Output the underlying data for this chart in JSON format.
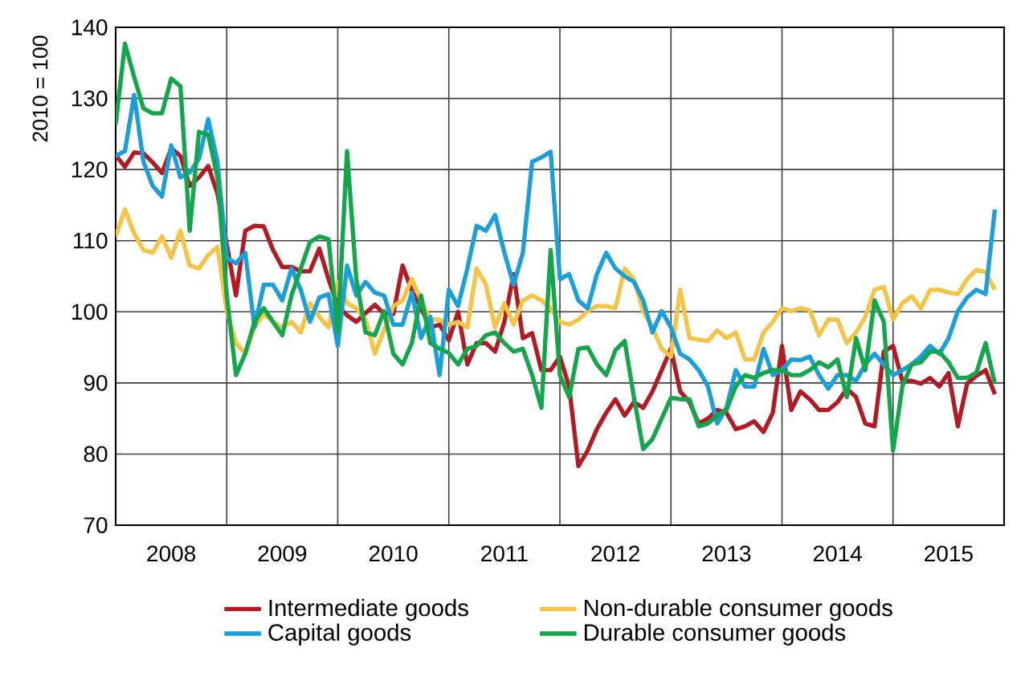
{
  "chart_data": {
    "type": "line",
    "ylabel": "2010 = 100",
    "x": [
      "2008-01",
      "2008-02",
      "2008-03",
      "2008-04",
      "2008-05",
      "2008-06",
      "2008-07",
      "2008-08",
      "2008-09",
      "2008-10",
      "2008-11",
      "2008-12",
      "2009-01",
      "2009-02",
      "2009-03",
      "2009-04",
      "2009-05",
      "2009-06",
      "2009-07",
      "2009-08",
      "2009-09",
      "2009-10",
      "2009-11",
      "2009-12",
      "2010-01",
      "2010-02",
      "2010-03",
      "2010-04",
      "2010-05",
      "2010-06",
      "2010-07",
      "2010-08",
      "2010-09",
      "2010-10",
      "2010-11",
      "2010-12",
      "2011-01",
      "2011-02",
      "2011-03",
      "2011-04",
      "2011-05",
      "2011-06",
      "2011-07",
      "2011-08",
      "2011-09",
      "2011-10",
      "2011-11",
      "2011-12",
      "2012-01",
      "2012-02",
      "2012-03",
      "2012-04",
      "2012-05",
      "2012-06",
      "2012-07",
      "2012-08",
      "2012-09",
      "2012-10",
      "2012-11",
      "2012-12",
      "2013-01",
      "2013-02",
      "2013-03",
      "2013-04",
      "2013-05",
      "2013-06",
      "2013-07",
      "2013-08",
      "2013-09",
      "2013-10",
      "2013-11",
      "2013-12",
      "2014-01",
      "2014-02",
      "2014-03",
      "2014-04",
      "2014-05",
      "2014-06",
      "2014-07",
      "2014-08",
      "2014-09",
      "2014-10",
      "2014-11",
      "2014-12",
      "2015-01",
      "2015-02",
      "2015-03",
      "2015-04",
      "2015-05",
      "2015-06",
      "2015-07",
      "2015-08",
      "2015-09",
      "2015-10",
      "2015-11",
      "2015-12"
    ],
    "xlim": [
      "2008-01",
      "2016-01"
    ],
    "xticks": [
      {
        "value": "2008-01",
        "label": null
      },
      {
        "value": "2008-07",
        "label": "2008"
      },
      {
        "value": "2009-01",
        "label": null
      },
      {
        "value": "2009-07",
        "label": "2009"
      },
      {
        "value": "2010-01",
        "label": null
      },
      {
        "value": "2010-07",
        "label": "2010"
      },
      {
        "value": "2011-01",
        "label": null
      },
      {
        "value": "2011-07",
        "label": "2011"
      },
      {
        "value": "2012-01",
        "label": null
      },
      {
        "value": "2012-07",
        "label": "2012"
      },
      {
        "value": "2013-01",
        "label": null
      },
      {
        "value": "2013-07",
        "label": "2013"
      },
      {
        "value": "2014-01",
        "label": null
      },
      {
        "value": "2014-07",
        "label": "2014"
      },
      {
        "value": "2015-01",
        "label": null
      },
      {
        "value": "2015-07",
        "label": "2015"
      },
      {
        "value": "2016-01",
        "label": null
      }
    ],
    "ylim": [
      70,
      140
    ],
    "yticks": [
      70,
      80,
      90,
      100,
      110,
      120,
      130,
      140
    ],
    "grid": true,
    "legend": "bottom",
    "marker": "none",
    "series": [
      {
        "name": "Intermediate goods",
        "color": "#b31b24",
        "values": [
          122.0,
          120.4,
          122.4,
          122.3,
          121.0,
          119.5,
          123.0,
          121.9,
          117.7,
          118.9,
          120.5,
          116.6,
          109.5,
          102.3,
          111.4,
          112.1,
          112.0,
          108.7,
          106.3,
          106.3,
          105.7,
          105.7,
          108.9,
          104.6,
          100.8,
          99.5,
          98.6,
          99.8,
          101.0,
          99.7,
          99.7,
          106.5,
          103.0,
          100.5,
          97.8,
          98.2,
          96.0,
          100.0,
          92.6,
          95.6,
          95.6,
          94.4,
          98.6,
          105.3,
          96.3,
          97.0,
          91.8,
          91.8,
          93.7,
          89.5,
          78.3,
          80.5,
          83.5,
          85.8,
          87.7,
          85.4,
          87.3,
          86.5,
          88.8,
          91.8,
          94.8,
          88.8,
          87.3,
          84.3,
          85.0,
          86.2,
          85.8,
          83.5,
          83.9,
          84.6,
          83.1,
          85.8,
          95.2,
          86.2,
          88.8,
          87.7,
          86.2,
          86.2,
          87.3,
          89.2,
          88.0,
          84.3,
          83.9,
          94.4,
          95.2,
          90.3,
          90.3,
          89.9,
          90.7,
          89.5,
          91.4,
          83.9,
          89.9,
          91.0,
          91.8,
          88.4
        ]
      },
      {
        "name": "Non-durable consumer goods",
        "color": "#f5c445",
        "values": [
          110.6,
          114.4,
          111.0,
          108.7,
          108.3,
          110.6,
          107.6,
          111.4,
          106.5,
          106.1,
          108.0,
          109.1,
          100.1,
          95.6,
          94.1,
          97.8,
          99.7,
          98.6,
          97.8,
          98.6,
          97.1,
          101.2,
          99.3,
          97.8,
          104.2,
          101.2,
          100.5,
          98.9,
          94.1,
          97.4,
          100.8,
          101.6,
          104.6,
          101.6,
          98.9,
          98.9,
          98.2,
          98.6,
          97.8,
          106.1,
          103.8,
          97.8,
          101.2,
          98.2,
          101.6,
          102.3,
          101.6,
          100.5,
          98.6,
          98.2,
          98.9,
          100.1,
          100.8,
          100.8,
          100.5,
          106.1,
          104.6,
          100.1,
          97.8,
          94.8,
          93.7,
          103.1,
          96.3,
          96.1,
          95.9,
          97.4,
          96.3,
          97.1,
          93.3,
          93.3,
          97.1,
          98.6,
          100.5,
          100.1,
          100.5,
          100.2,
          96.7,
          98.9,
          98.9,
          95.6,
          97.1,
          99.3,
          103.1,
          103.5,
          98.9,
          101.2,
          102.2,
          100.5,
          103.1,
          103.1,
          102.7,
          102.5,
          104.6,
          105.9,
          105.6,
          103.1
        ]
      },
      {
        "name": "Capital goods",
        "color": "#1a9fdb",
        "values": [
          121.9,
          122.6,
          130.5,
          121.1,
          117.7,
          116.2,
          123.4,
          118.9,
          119.6,
          121.5,
          127.1,
          121.1,
          107.6,
          106.8,
          108.3,
          97.8,
          103.8,
          103.8,
          101.6,
          106.1,
          103.1,
          98.6,
          102.0,
          102.5,
          95.2,
          106.5,
          102.3,
          104.2,
          102.7,
          102.3,
          98.2,
          98.2,
          102.7,
          96.3,
          99.3,
          91.1,
          103.1,
          100.8,
          106.1,
          112.1,
          111.4,
          113.6,
          108.3,
          103.8,
          108.3,
          121.1,
          121.7,
          122.5,
          104.6,
          105.3,
          101.6,
          100.5,
          105.3,
          108.3,
          106.1,
          105.0,
          104.2,
          101.6,
          97.1,
          100.1,
          97.8,
          94.1,
          93.3,
          91.8,
          89.5,
          84.3,
          86.5,
          91.8,
          89.5,
          89.5,
          94.8,
          91.1,
          91.8,
          93.3,
          93.2,
          93.7,
          91.1,
          89.2,
          91.1,
          91.1,
          90.3,
          92.6,
          94.1,
          92.6,
          91.1,
          91.8,
          92.6,
          93.7,
          95.2,
          94.1,
          96.3,
          100.1,
          102.0,
          103.1,
          102.5,
          114.4
        ]
      },
      {
        "name": "Durable consumer goods",
        "color": "#13a64a",
        "values": [
          126.4,
          137.7,
          133.0,
          128.6,
          127.9,
          127.9,
          132.8,
          131.7,
          111.4,
          125.3,
          124.9,
          118.9,
          102.3,
          91.1,
          94.1,
          98.6,
          100.5,
          98.6,
          96.7,
          102.3,
          106.1,
          109.8,
          110.6,
          110.2,
          97.1,
          122.6,
          104.6,
          97.1,
          96.7,
          100.1,
          94.1,
          92.6,
          95.6,
          102.3,
          95.6,
          94.8,
          94.2,
          92.6,
          94.8,
          95.2,
          96.7,
          97.1,
          95.6,
          94.4,
          94.8,
          91.1,
          86.5,
          108.7,
          91.1,
          88.0,
          94.8,
          95.0,
          92.6,
          91.1,
          94.6,
          95.9,
          88.0,
          80.7,
          82.1,
          85.0,
          87.9,
          87.7,
          87.7,
          83.9,
          84.3,
          85.4,
          86.2,
          89.5,
          91.1,
          90.7,
          91.4,
          91.8,
          91.8,
          91.1,
          91.1,
          91.8,
          92.9,
          92.2,
          93.3,
          88.0,
          96.3,
          91.8,
          101.6,
          98.6,
          80.5,
          89.5,
          92.6,
          92.9,
          94.4,
          94.4,
          92.9,
          90.7,
          90.7,
          91.4,
          95.6,
          89.9
        ]
      }
    ]
  }
}
